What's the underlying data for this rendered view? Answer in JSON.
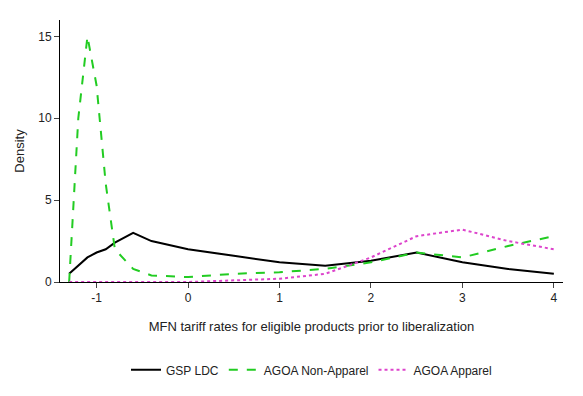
{
  "chart_data": {
    "type": "line",
    "x_label": "MFN tariff rates for eligible products prior to liberalization",
    "y_label": "Density",
    "xlim": [
      -1.4,
      4.1
    ],
    "xticks": [
      {
        "value": -1,
        "label": "-1"
      },
      0,
      1,
      2,
      3,
      4
    ],
    "ylim": [
      0,
      16
    ],
    "yticks": [
      0,
      5,
      10,
      15
    ],
    "grid": false,
    "legend": "bottom",
    "series": [
      {
        "name": "GSP LDC",
        "color": "#000000",
        "line_style": "solid",
        "x": [
          -1.3,
          -1.2,
          -1.1,
          -1.0,
          -0.9,
          -0.8,
          -0.6,
          -0.4,
          0,
          0.5,
          1,
          1.5,
          2,
          2.5,
          3,
          3.5,
          4
        ],
        "values": [
          0.5,
          1,
          1.5,
          1.8,
          2,
          2.4,
          3,
          2.5,
          2,
          1.6,
          1.2,
          1,
          1.3,
          1.8,
          1.2,
          0.8,
          0.5
        ]
      },
      {
        "name": "AGOA Non-Apparel",
        "color": "#22cc22",
        "line_style": "dash",
        "x": [
          -1.3,
          -1.2,
          -1.1,
          -1.0,
          -0.9,
          -0.8,
          -0.6,
          -0.4,
          0,
          0.5,
          1,
          1.5,
          2,
          2.5,
          3,
          3.5,
          4
        ],
        "values": [
          0,
          10,
          15,
          12,
          6,
          2,
          0.8,
          0.4,
          0.3,
          0.5,
          0.6,
          0.8,
          1.2,
          1.8,
          1.5,
          2.2,
          2.8
        ]
      },
      {
        "name": "AGOA Apparel",
        "color": "#dd44cc",
        "line_style": "dot",
        "x": [
          -1.3,
          -1.2,
          -1.1,
          -1.0,
          -0.9,
          -0.8,
          -0.6,
          -0.4,
          0,
          0.5,
          1,
          1.5,
          2,
          2.5,
          3,
          3.5,
          4
        ],
        "values": [
          0,
          0,
          0,
          0,
          0,
          0,
          0,
          0,
          0,
          0.1,
          0.2,
          0.5,
          1.5,
          2.8,
          3.2,
          2.5,
          2
        ]
      }
    ]
  }
}
